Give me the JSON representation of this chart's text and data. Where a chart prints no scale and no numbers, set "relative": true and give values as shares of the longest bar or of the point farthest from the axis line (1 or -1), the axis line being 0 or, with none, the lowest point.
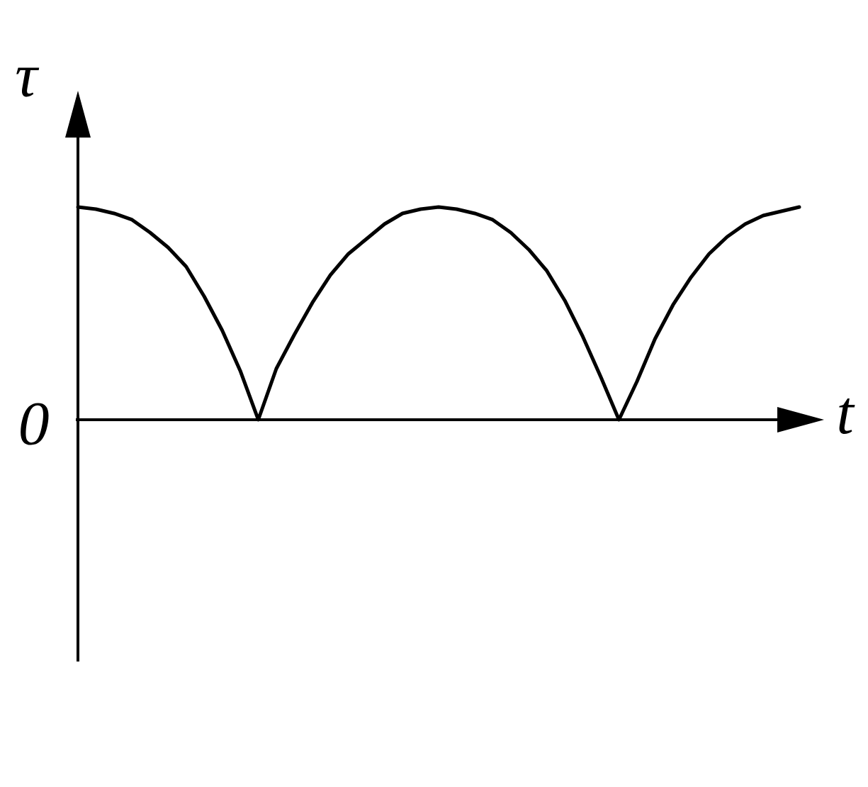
{
  "chart_data": {
    "type": "line",
    "xlabel": "t",
    "ylabel": "τ",
    "relative": true,
    "color": "#000000",
    "line_style": "solid",
    "categories": [
      null,
      null,
      null,
      null,
      null,
      null,
      null,
      null,
      null,
      null,
      null,
      null,
      null,
      null,
      null,
      null,
      null,
      null,
      null,
      null,
      null,
      null,
      null,
      null,
      null,
      null,
      null,
      null,
      null,
      null,
      null,
      null,
      null,
      null,
      null,
      null,
      null,
      null,
      null,
      null,
      null
    ],
    "values": [
      1.0,
      0.99,
      0.97,
      0.94,
      0.88,
      0.81,
      0.72,
      0.58,
      0.42,
      0.23,
      0,
      0.24,
      0.4,
      0.55,
      0.68,
      0.78,
      0.85,
      0.92,
      0.97,
      0.99,
      1.0,
      0.99,
      0.97,
      0.94,
      0.88,
      0.8,
      0.7,
      0.56,
      0.39,
      0.2,
      0,
      0.18,
      0.38,
      0.54,
      0.67,
      0.78,
      0.86,
      0.92,
      0.96,
      0.98,
      1.0
    ],
    "annotations": [
      "0"
    ]
  }
}
